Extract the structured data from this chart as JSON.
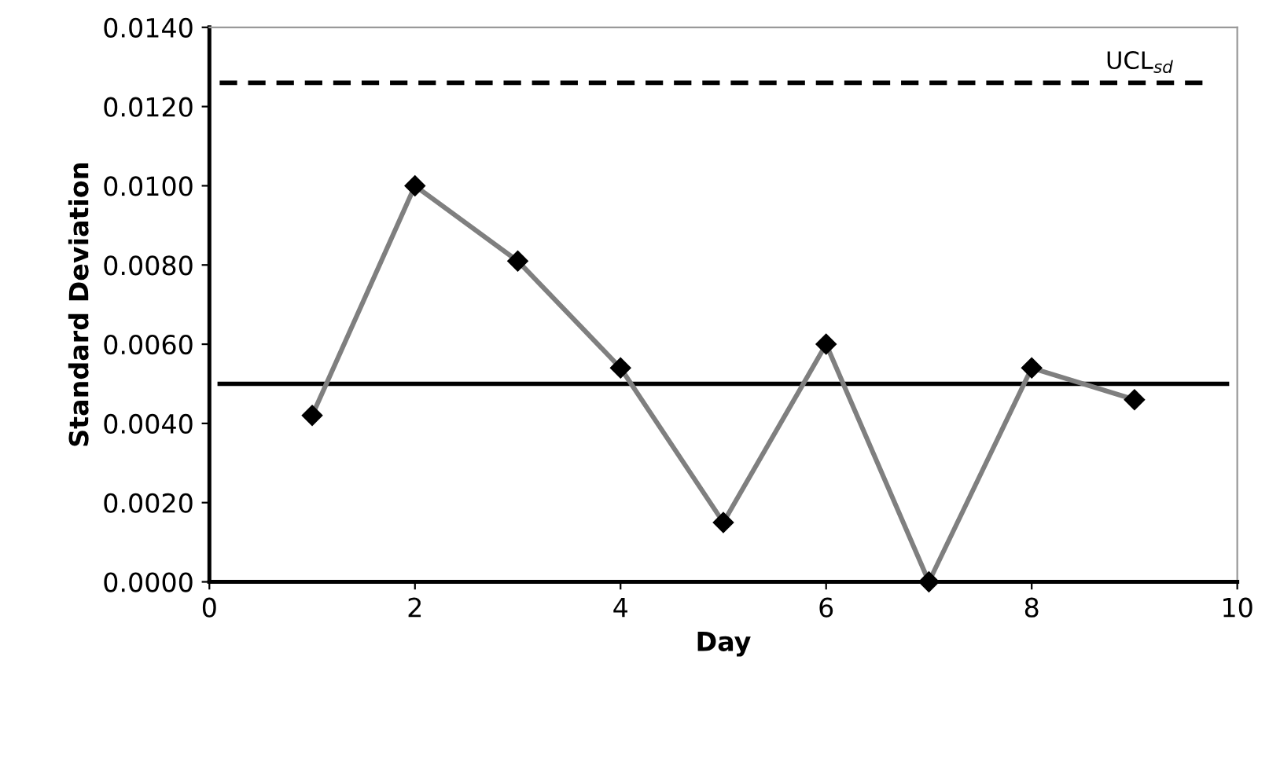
{
  "chart_data": {
    "type": "line",
    "xlabel": "Day",
    "ylabel": "Standard Deviation",
    "x": [
      1,
      2,
      3,
      4,
      5,
      6,
      7,
      8,
      9
    ],
    "series": [
      {
        "color": "#7f7f7f",
        "values": [
          0.0042,
          0.01,
          0.0081,
          0.0054,
          0.0015,
          0.006,
          0.0,
          0.0054,
          0.0046
        ]
      }
    ],
    "marker": "diamond",
    "line_style": "solid",
    "xlim": [
      0,
      10
    ],
    "xticks": [
      0,
      2,
      4,
      6,
      8,
      10
    ],
    "ylim": [
      0,
      0.014
    ],
    "yticks": [
      {
        "value": 0,
        "label": "0.0000"
      },
      {
        "value": 0.002,
        "label": "0.0020"
      },
      {
        "value": 0.004,
        "label": "0.0040"
      },
      {
        "value": 0.006,
        "label": "0.0060"
      },
      {
        "value": 0.008,
        "label": "0.0080"
      },
      {
        "value": 0.01,
        "label": "0.0100"
      },
      {
        "value": 0.012,
        "label": "0.0120"
      },
      {
        "value": 0.014,
        "label": "0.0140"
      }
    ],
    "ref_lines": [
      {
        "axis": "y",
        "value": 0.0126,
        "label": "UCL$_{sd}$",
        "color": "#000000",
        "line_style": "dashed"
      },
      {
        "axis": "y",
        "value": 0.005,
        "color": "#000000",
        "line_style": "solid"
      }
    ],
    "grid": false,
    "legend": false
  }
}
